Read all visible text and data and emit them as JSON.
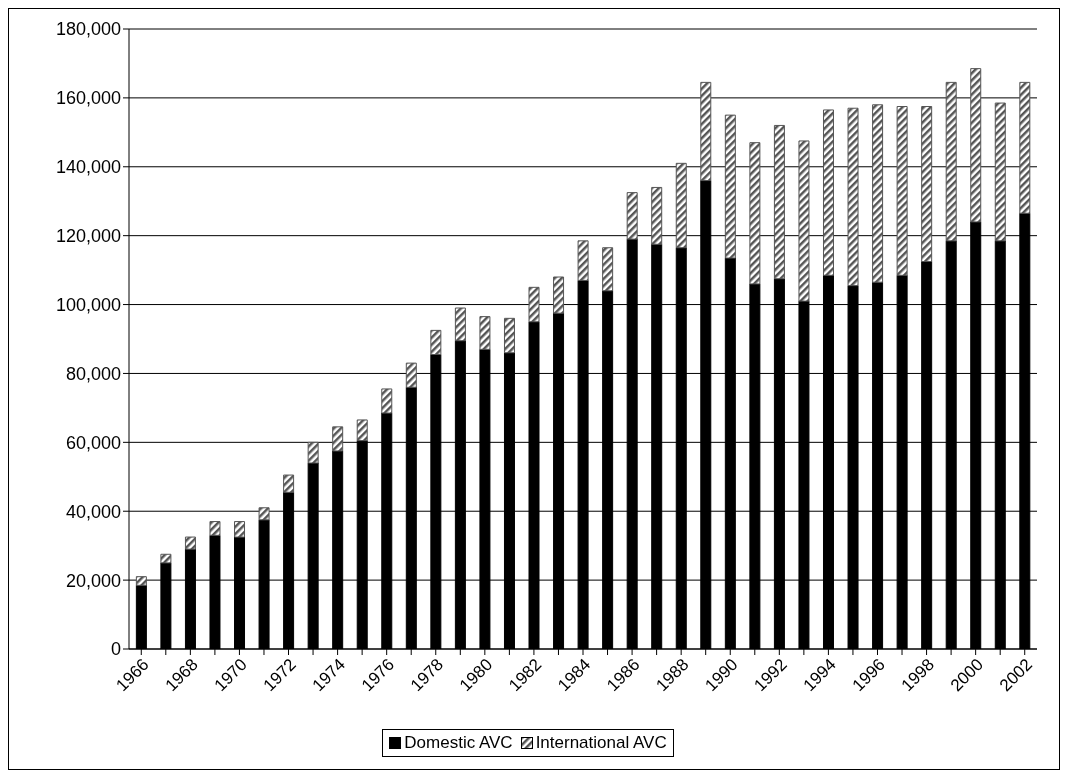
{
  "chart_data": {
    "type": "bar",
    "stacked": true,
    "categories": [
      "1966",
      null,
      "1968",
      null,
      "1970",
      null,
      "1972",
      null,
      "1974",
      null,
      "1976",
      null,
      "1978",
      null,
      "1980",
      null,
      "1982",
      null,
      "1984",
      null,
      "1986",
      null,
      "1988",
      null,
      "1990",
      null,
      "1992",
      null,
      "1994",
      null,
      "1996",
      null,
      "1998",
      null,
      "2000",
      null,
      "2002"
    ],
    "series": [
      {
        "name": "Domestic AVC",
        "color": "#000000",
        "values": [
          18500,
          25000,
          29000,
          33000,
          32500,
          37500,
          45500,
          54000,
          57500,
          60500,
          68500,
          76000,
          85500,
          89500,
          87000,
          86000,
          95000,
          97500,
          107000,
          104000,
          119000,
          117500,
          116500,
          136000,
          113500,
          106000,
          107500,
          101000,
          108500,
          105500,
          106500,
          108500,
          112500,
          118500,
          124000,
          118500,
          126500
        ]
      },
      {
        "name": "International AVC",
        "color": "#555555",
        "values": [
          2500,
          2500,
          3500,
          4000,
          4500,
          3500,
          5000,
          6000,
          7000,
          6000,
          7000,
          7000,
          7000,
          9500,
          9500,
          10000,
          10000,
          10500,
          11500,
          12500,
          13500,
          16500,
          24500,
          28500,
          41500,
          41000,
          44500,
          46500,
          48000,
          51500,
          51500,
          49000,
          45000,
          46000,
          44500,
          40000,
          38000
        ]
      }
    ],
    "ylim": [
      0,
      180000
    ],
    "yticks": [
      0,
      {
        "value": 20000,
        "label": "20,000"
      },
      {
        "value": 40000,
        "label": "40,000"
      },
      {
        "value": 60000,
        "label": "60,000"
      },
      {
        "value": 80000,
        "label": "80,000"
      },
      {
        "value": 100000,
        "label": "100,000"
      },
      {
        "value": 120000,
        "label": "120,000"
      },
      {
        "value": 140000,
        "label": "140,000"
      },
      {
        "value": 160000,
        "label": "160,000"
      },
      {
        "value": 180000,
        "label": "180,000"
      }
    ],
    "grid": "y",
    "legend": "bottom"
  }
}
